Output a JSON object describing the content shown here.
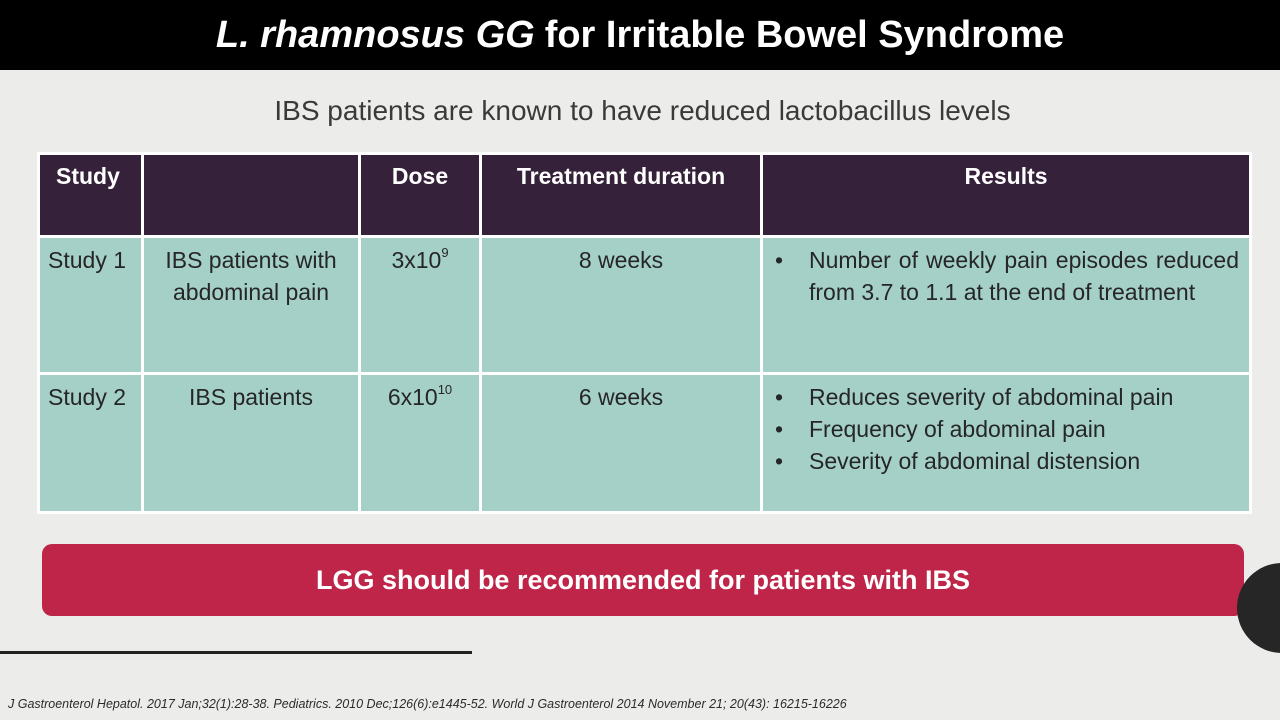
{
  "title": {
    "italic_part": "L. rhamnosus GG",
    "regular_part": "for Irritable Bowel Syndrome"
  },
  "subtitle": "IBS patients are known to have reduced lactobacillus levels",
  "table": {
    "headers": [
      "Study",
      "",
      "Dose",
      "Treatment duration",
      "Results"
    ],
    "rows": [
      {
        "study": "Study 1",
        "population": "IBS patients with abdominal pain",
        "dose_base": "3x10",
        "dose_exp": "9",
        "duration": "8 weeks",
        "results": [
          "Number of weekly pain episodes reduced from 3.7 to 1.1 at the end of treatment"
        ]
      },
      {
        "study": "Study 2",
        "population": "IBS patients",
        "dose_base": "6x10",
        "dose_exp": "10",
        "duration": "6 weeks",
        "results": [
          "Reduces severity of abdominal pain",
          "Frequency of abdominal pain",
          "Severity of abdominal distension"
        ]
      }
    ]
  },
  "recommendation": "LGG should be recommended for patients with IBS",
  "references": "J Gastroenterol Hepatol. 2017 Jan;32(1):28-38. Pediatrics. 2010 Dec;126(6):e1445-52. World J Gastroenterol 2014 November 21; 20(43): 16215-16226",
  "colors": {
    "title_bar": "#000000",
    "header_row": "#35223a",
    "body_rows": "#a4d0c8",
    "recommendation_banner": "#be2548",
    "background": "#ececea"
  }
}
